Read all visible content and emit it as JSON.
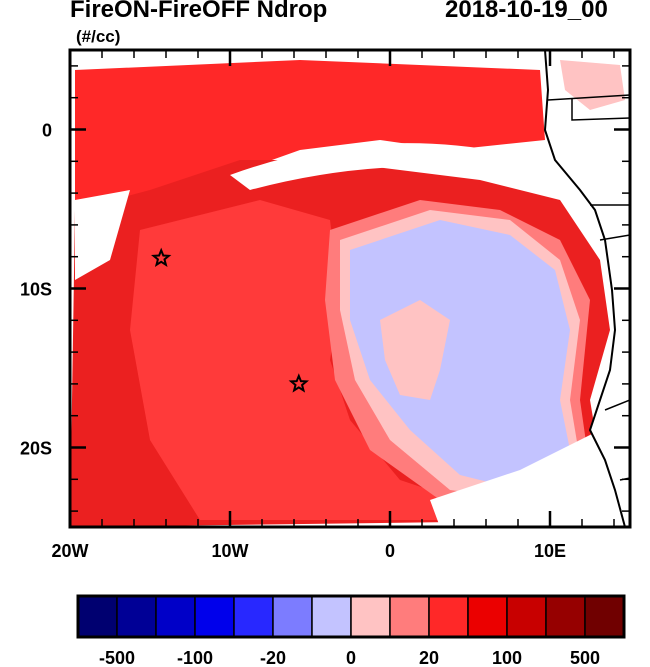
{
  "chart_data": {
    "type": "heatmap",
    "title": "FireON-FireOFF Ndrop",
    "units": "(#/cc)",
    "date": "2018-10-19_00",
    "xlim": [
      -20,
      15
    ],
    "ylim": [
      -25,
      5
    ],
    "x_ticks": [
      {
        "value": -20,
        "label": "20W"
      },
      {
        "value": -10,
        "label": "10W"
      },
      {
        "value": 0,
        "label": "0"
      },
      {
        "value": 10,
        "label": "10E"
      }
    ],
    "y_ticks": [
      {
        "value": 0,
        "label": "0"
      },
      {
        "value": -10,
        "label": "10S"
      },
      {
        "value": -20,
        "label": "20S"
      }
    ],
    "markers": [
      {
        "type": "star",
        "lon": -14.3,
        "lat": -8.1
      },
      {
        "type": "star",
        "lon": -5.7,
        "lat": -16.0
      }
    ],
    "colorbar": {
      "levels": [
        -500,
        -200,
        -100,
        -50,
        -20,
        -10,
        0,
        10,
        20,
        50,
        100,
        200,
        500
      ],
      "labels": [
        "-500",
        "-100",
        "-20",
        "0",
        "20",
        "100",
        "500"
      ],
      "colors": [
        "#000070",
        "#000096",
        "#0000c8",
        "#0000eb",
        "#2828ff",
        "#7c7cff",
        "#c3c3ff",
        "#ffc3c3",
        "#ff7c7c",
        "#ff2828",
        "#eb0000",
        "#c80000",
        "#960000",
        "#700000"
      ]
    }
  }
}
